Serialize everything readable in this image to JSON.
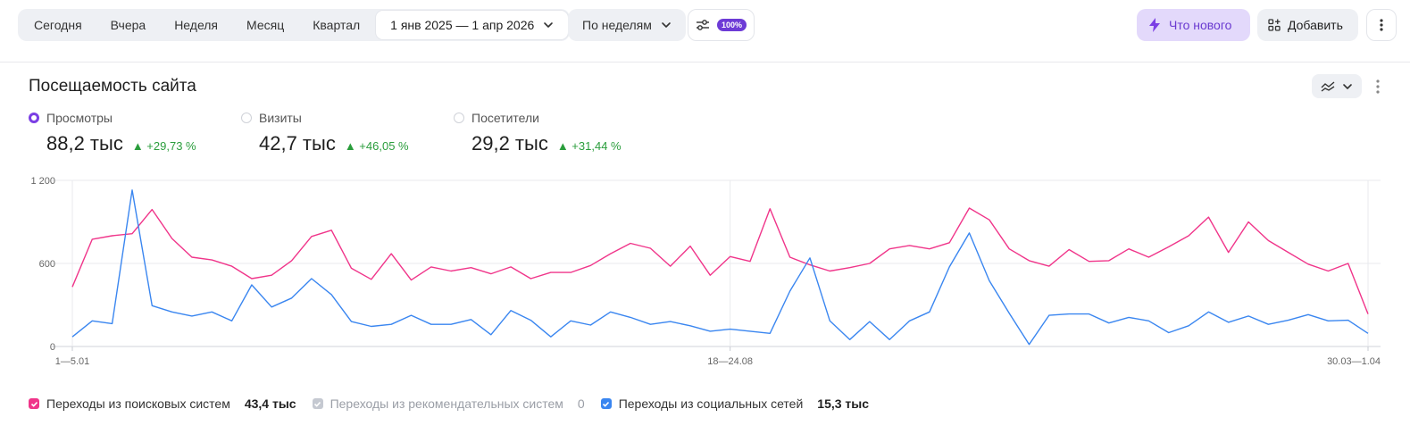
{
  "toolbar": {
    "periods": [
      "Сегодня",
      "Вчера",
      "Неделя",
      "Месяц",
      "Квартал"
    ],
    "date_range": "1 янв 2025 — 1 апр 2026",
    "grouping": "По неделям",
    "filter_badge": "100%",
    "whats_new": "Что нового",
    "add": "Добавить"
  },
  "widget": {
    "title": "Посещаемость сайта",
    "metrics": [
      {
        "label": "Просмотры",
        "value": "88,2 тыс",
        "delta": "▲ +29,73 %",
        "selected": true
      },
      {
        "label": "Визиты",
        "value": "42,7 тыс",
        "delta": "▲ +46,05 %",
        "selected": false
      },
      {
        "label": "Посетители",
        "value": "29,2 тыс",
        "delta": "▲ +31,44 %",
        "selected": false
      }
    ]
  },
  "legend": [
    {
      "name": "Переходы из поисковых систем",
      "value": "43,4 тыс",
      "color": "#f0358a",
      "checked": true
    },
    {
      "name": "Переходы из рекомендательных систем",
      "value": "0",
      "color": "#c5c9d1",
      "checked": true
    },
    {
      "name": "Переходы из социальных сетей",
      "value": "15,3 тыс",
      "color": "#3a86f0",
      "checked": true
    }
  ],
  "chart_data": {
    "type": "line",
    "ylim": [
      0,
      1200
    ],
    "y_ticks": [
      "0",
      "600",
      "1 200"
    ],
    "x_tick_labels": [
      "1—5.01",
      "18—24.08",
      "30.03—1.04"
    ],
    "grid": true,
    "series": [
      {
        "name": "Переходы из поисковых систем",
        "color": "#f0358a",
        "values": [
          430,
          775,
          800,
          815,
          990,
          780,
          645,
          625,
          580,
          490,
          515,
          620,
          795,
          840,
          565,
          485,
          670,
          480,
          575,
          545,
          570,
          525,
          575,
          490,
          535,
          535,
          585,
          670,
          745,
          710,
          580,
          725,
          515,
          650,
          615,
          995,
          645,
          590,
          545,
          570,
          600,
          705,
          730,
          705,
          750,
          1000,
          915,
          705,
          620,
          580,
          700,
          615,
          620,
          705,
          645,
          720,
          800,
          935,
          680,
          900,
          765,
          680,
          595,
          545,
          600,
          235
        ]
      },
      {
        "name": "Переходы из социальных сетей",
        "color": "#3a86f0",
        "values": [
          70,
          185,
          165,
          1130,
          295,
          250,
          220,
          250,
          185,
          445,
          285,
          350,
          490,
          375,
          180,
          145,
          160,
          225,
          160,
          160,
          195,
          85,
          260,
          190,
          70,
          185,
          155,
          250,
          210,
          160,
          180,
          150,
          110,
          125,
          110,
          95,
          400,
          640,
          185,
          50,
          180,
          50,
          185,
          250,
          575,
          820,
          475,
          240,
          15,
          225,
          235,
          235,
          170,
          210,
          185,
          100,
          150,
          250,
          175,
          220,
          160,
          190,
          230,
          185,
          190,
          95
        ]
      }
    ]
  }
}
